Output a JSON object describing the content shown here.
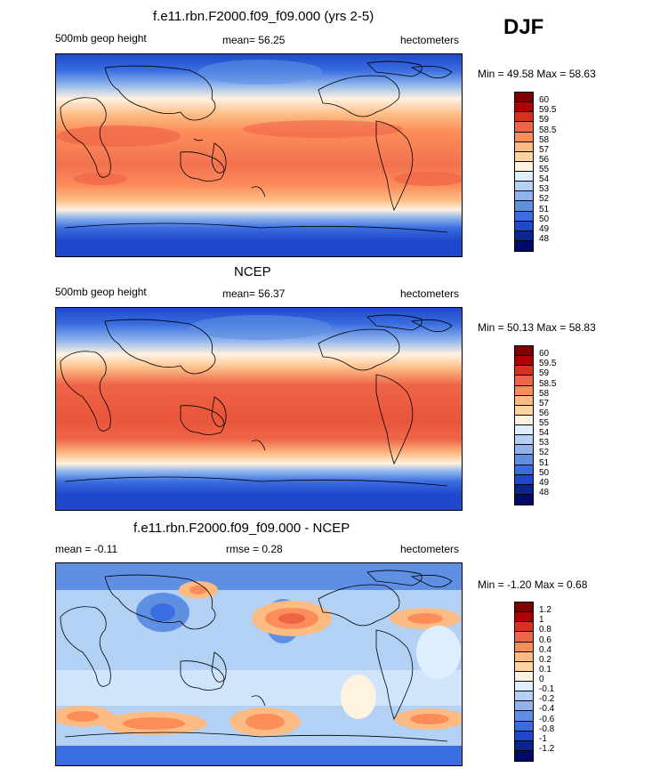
{
  "season": "DJF",
  "panels": [
    {
      "title": "f.e11.rbn.F2000.f09_f09.000 (yrs 2-5)",
      "left_label": "500mb geop height",
      "center_label": "mean=  56.25",
      "right_label": "hectometers",
      "minmax": "Min =  49.58 Max =  58.63",
      "colorbar": {
        "labels": [
          "60",
          "59.5",
          "59",
          "58.5",
          "58",
          "57",
          "56",
          "55",
          "54",
          "53",
          "52",
          "51",
          "50",
          "49",
          "48"
        ],
        "colors": [
          "#7f0000",
          "#b00000",
          "#d7301f",
          "#ef6548",
          "#fc8d59",
          "#fdbb84",
          "#fdd49e",
          "#fff2e0",
          "#ddeeff",
          "#b3d1f5",
          "#8fb4ec",
          "#5f8fe3",
          "#3a6ee0",
          "#1f48cc",
          "#0a2590",
          "#020a6a"
        ]
      }
    },
    {
      "title": "NCEP",
      "left_label": "500mb geop height",
      "center_label": "mean=  56.37",
      "right_label": "hectometers",
      "minmax": "Min =  50.13 Max =  58.83",
      "colorbar": {
        "labels": [
          "60",
          "59.5",
          "59",
          "58.5",
          "58",
          "57",
          "56",
          "55",
          "54",
          "53",
          "52",
          "51",
          "50",
          "49",
          "48"
        ],
        "colors": [
          "#7f0000",
          "#b00000",
          "#d7301f",
          "#ef6548",
          "#fc8d59",
          "#fdbb84",
          "#fdd49e",
          "#fff2e0",
          "#ddeeff",
          "#b3d1f5",
          "#8fb4ec",
          "#5f8fe3",
          "#3a6ee0",
          "#1f48cc",
          "#0a2590",
          "#020a6a"
        ]
      }
    },
    {
      "title": "f.e11.rbn.F2000.f09_f09.000 - NCEP",
      "left_label": "mean =  -0.11",
      "center_label": "rmse =   0.28",
      "right_label": "hectometers",
      "minmax": "Min =  -1.20 Max =   0.68",
      "colorbar": {
        "labels": [
          "1.2",
          "1",
          "0.8",
          "0.6",
          "0.4",
          "0.2",
          "0.1",
          "0",
          "-0.1",
          "-0.2",
          "-0.4",
          "-0.6",
          "-0.8",
          "-1",
          "-1.2"
        ],
        "colors": [
          "#7f0000",
          "#b00000",
          "#d7301f",
          "#ef6548",
          "#fc8d59",
          "#fdbb84",
          "#fdd49e",
          "#fff2e0",
          "#ddeeff",
          "#b3d1f5",
          "#8fb4ec",
          "#5f8fe3",
          "#3a6ee0",
          "#1f48cc",
          "#0a2590",
          "#020a6a"
        ]
      }
    }
  ]
}
